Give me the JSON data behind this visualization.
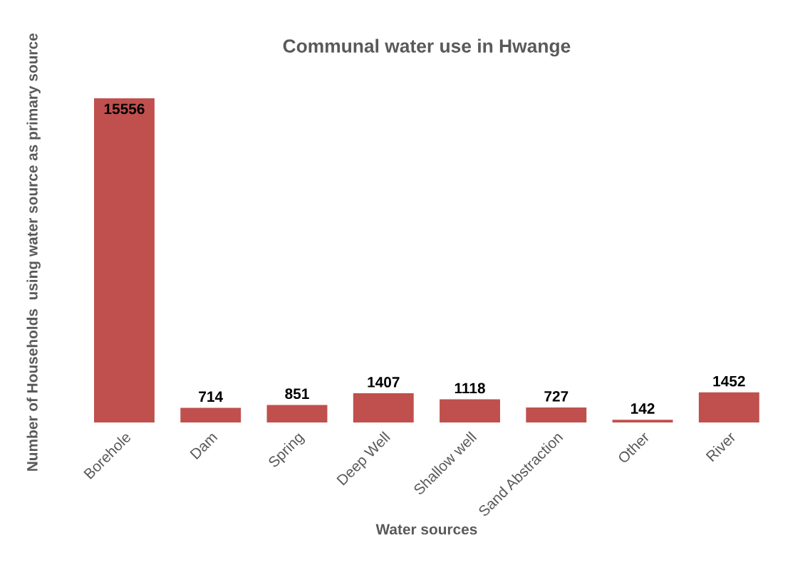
{
  "chart_data": {
    "type": "bar",
    "title": "Communal water use in Hwange",
    "xlabel": "Water sources",
    "ylabel": "Number of Households  using water source as primary source",
    "categories": [
      "Borehole",
      "Dam",
      "Spring",
      "Deep Well",
      "Shallow well",
      "Sand Abstraction",
      "Other",
      "River"
    ],
    "values": [
      15556,
      714,
      851,
      1407,
      1118,
      727,
      142,
      1452
    ],
    "color": "#c0504d",
    "data_labels": true,
    "grid": false,
    "legend": false
  }
}
